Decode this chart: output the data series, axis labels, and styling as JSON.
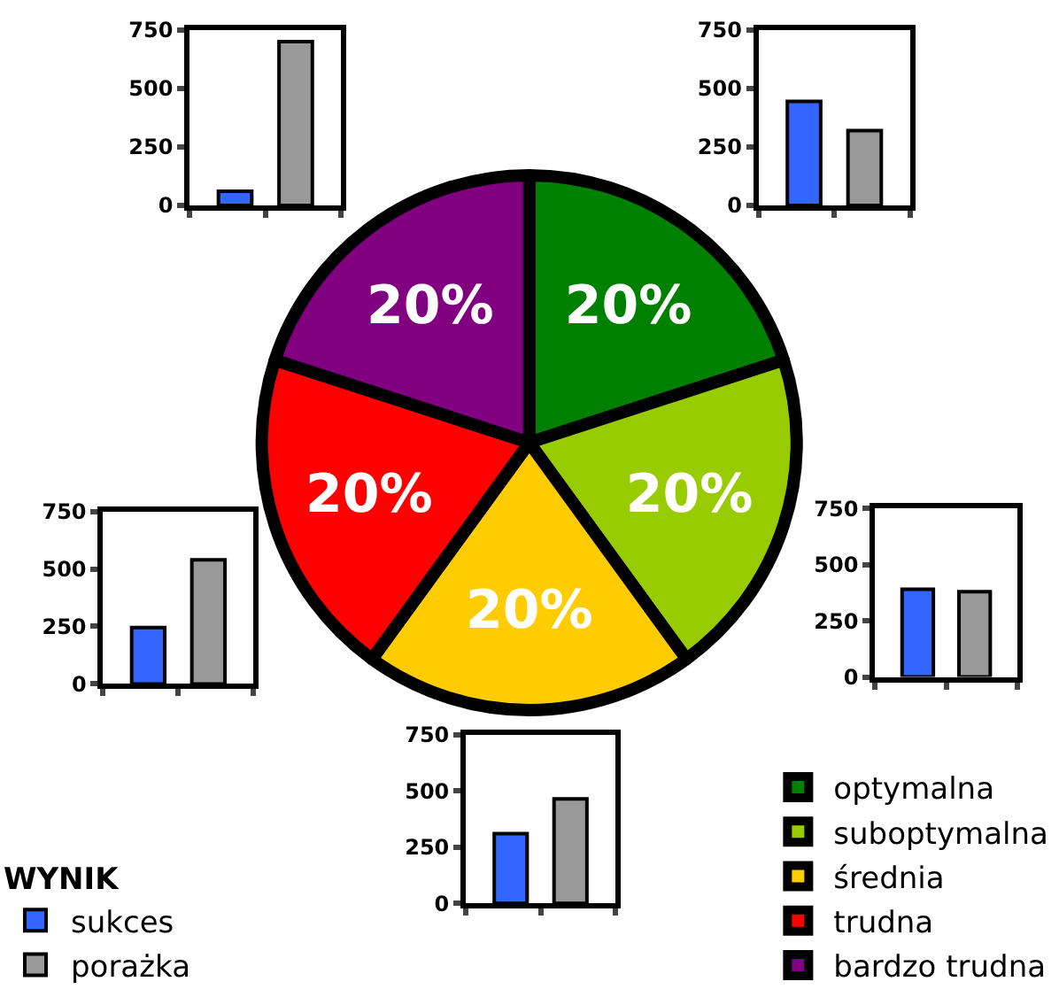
{
  "chart_data": [
    {
      "type": "bar",
      "categories": [
        null
      ],
      "series": [
        {
          "name": "sukces",
          "color": "#3366ff",
          "values": [
            60
          ]
        },
        {
          "name": "porażka",
          "color": "#999999",
          "values": [
            700
          ]
        }
      ],
      "ylim": [
        0,
        750
      ],
      "yticks": [
        0,
        250,
        500,
        750
      ],
      "tick_labels": "y",
      "legend_title": "WYNIK",
      "legend": "bottom left"
    },
    {
      "type": "bar",
      "categories": [
        null
      ],
      "series": [
        {
          "color": "#3366ff",
          "values": [
            445
          ]
        },
        {
          "color": "#999999",
          "values": [
            320
          ]
        }
      ],
      "ylim": [
        0,
        750
      ],
      "yticks": [
        0,
        250,
        500,
        750
      ],
      "tick_labels": "y"
    },
    {
      "type": "pie",
      "categories": [
        "optymalna",
        "suboptymalna",
        "średnia",
        "trudna",
        "bardzo trudna"
      ],
      "values": [
        20,
        20,
        20,
        20,
        20
      ],
      "value_labels": [
        "20%",
        "20%",
        "20%",
        "20%",
        "20%"
      ],
      "colors": [
        "#008000",
        "#99cc00",
        "#ffcc00",
        "#ff0000",
        "#800080"
      ],
      "legend": "bottom right"
    },
    {
      "type": "bar",
      "categories": [
        null
      ],
      "series": [
        {
          "color": "#3366ff",
          "values": [
            245
          ]
        },
        {
          "color": "#999999",
          "values": [
            540
          ]
        }
      ],
      "ylim": [
        0,
        750
      ],
      "yticks": [
        0,
        250,
        500,
        750
      ],
      "tick_labels": "y"
    },
    {
      "type": "bar",
      "categories": [
        null
      ],
      "series": [
        {
          "color": "#3366ff",
          "values": [
            390
          ]
        },
        {
          "color": "#999999",
          "values": [
            380
          ]
        }
      ],
      "ylim": [
        0,
        750
      ],
      "yticks": [
        0,
        250,
        500,
        750
      ],
      "tick_labels": "y"
    },
    {
      "type": "bar",
      "categories": [
        null
      ],
      "series": [
        {
          "color": "#3366ff",
          "values": [
            310
          ]
        },
        {
          "color": "#999999",
          "values": [
            465
          ]
        }
      ],
      "ylim": [
        0,
        750
      ],
      "yticks": [
        0,
        250,
        500,
        750
      ],
      "tick_labels": "y"
    }
  ]
}
